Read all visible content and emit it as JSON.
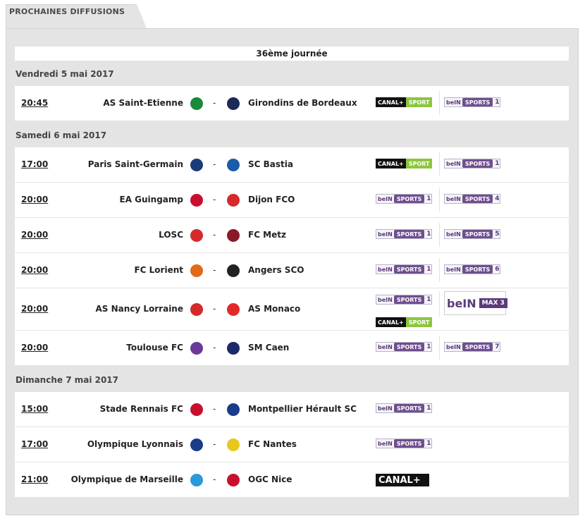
{
  "tab": {
    "label": "PROCHAINES DIFFUSIONS"
  },
  "round": {
    "label": "36ème journée"
  },
  "days": [
    {
      "label": "Vendredi 5 mai 2017",
      "matches": [
        {
          "time": "20:45",
          "home": "AS Saint-Etienne",
          "away": "Girondins de Bordeaux",
          "home_icon": "saint-etienne-crest-icon",
          "away_icon": "bordeaux-crest-icon",
          "home_color": "#1a8a3a",
          "away_color": "#1c2a5a",
          "broadcasters": [
            "CANAL+ SPORT",
            "beIN SPORTS 1"
          ]
        }
      ]
    },
    {
      "label": "Samedi 6 mai 2017",
      "matches": [
        {
          "time": "17:00",
          "home": "Paris Saint-Germain",
          "away": "SC Bastia",
          "home_icon": "psg-crest-icon",
          "away_icon": "bastia-crest-icon",
          "home_color": "#1a3c7a",
          "away_color": "#1a5ca8",
          "broadcasters": [
            "CANAL+ SPORT",
            "beIN SPORTS 1"
          ]
        },
        {
          "time": "20:00",
          "home": "EA Guingamp",
          "away": "Dijon FCO",
          "home_icon": "guingamp-crest-icon",
          "away_icon": "dijon-crest-icon",
          "home_color": "#c8102e",
          "away_color": "#d62a2a",
          "broadcasters": [
            "beIN SPORTS 1",
            "beIN SPORTS 4"
          ]
        },
        {
          "time": "20:00",
          "home": "LOSC",
          "away": "FC Metz",
          "home_icon": "losc-crest-icon",
          "away_icon": "metz-crest-icon",
          "home_color": "#d42a2a",
          "away_color": "#8a1a2a",
          "broadcasters": [
            "beIN SPORTS 1",
            "beIN SPORTS 5"
          ]
        },
        {
          "time": "20:00",
          "home": "FC Lorient",
          "away": "Angers SCO",
          "home_icon": "lorient-crest-icon",
          "away_icon": "angers-crest-icon",
          "home_color": "#e06a1a",
          "away_color": "#222222",
          "broadcasters": [
            "beIN SPORTS 1",
            "beIN SPORTS 6"
          ]
        },
        {
          "time": "20:00",
          "home": "AS Nancy Lorraine",
          "away": "AS Monaco",
          "home_icon": "nancy-crest-icon",
          "away_icon": "monaco-crest-icon",
          "home_color": "#d42a2a",
          "away_color": "#e02a2a",
          "broadcasters": [
            "beIN SPORTS 1",
            "beIN SPORTS MAX 3",
            "CANAL+ SPORT"
          ]
        },
        {
          "time": "20:00",
          "home": "Toulouse FC",
          "away": "SM Caen",
          "home_icon": "toulouse-crest-icon",
          "away_icon": "caen-crest-icon",
          "home_color": "#6a3a9a",
          "away_color": "#1a2a6a",
          "broadcasters": [
            "beIN SPORTS 1",
            "beIN SPORTS 7"
          ]
        }
      ]
    },
    {
      "label": "Dimanche 7 mai 2017",
      "matches": [
        {
          "time": "15:00",
          "home": "Stade Rennais FC",
          "away": "Montpellier Hérault SC",
          "home_icon": "rennes-crest-icon",
          "away_icon": "montpellier-crest-icon",
          "home_color": "#c8102e",
          "away_color": "#1a3c8a",
          "broadcasters": [
            "beIN SPORTS 1"
          ]
        },
        {
          "time": "17:00",
          "home": "Olympique Lyonnais",
          "away": "FC Nantes",
          "home_icon": "lyon-crest-icon",
          "away_icon": "nantes-crest-icon",
          "home_color": "#1a3c8a",
          "away_color": "#e8c81a",
          "broadcasters": [
            "beIN SPORTS 1"
          ]
        },
        {
          "time": "21:00",
          "home": "Olympique de Marseille",
          "away": "OGC Nice",
          "home_icon": "marseille-crest-icon",
          "away_icon": "nice-crest-icon",
          "home_color": "#2a9ad8",
          "away_color": "#c8102e",
          "broadcasters": [
            "CANAL+"
          ]
        }
      ]
    }
  ],
  "colors": {
    "panel_bg": "#e4e4e4",
    "canal_sport_green": "#8cc63e",
    "bein_purple": "#6f4f8f"
  }
}
